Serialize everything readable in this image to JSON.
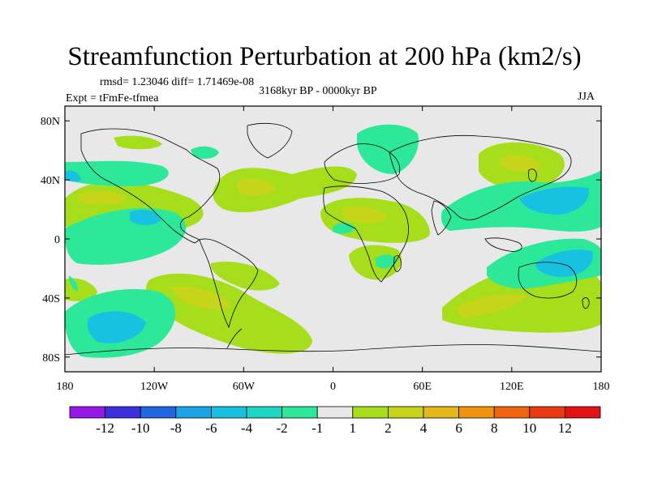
{
  "header": {
    "title": "Streamfunction Perturbation at 200 hPa (km2/s)",
    "stats": "rmsd= 1.23046 diff= 1.71469e-08",
    "period": "3168kyr BP - 0000kyr BP",
    "experiment": "Expt = tFmFe-tfmea",
    "season": "JJA"
  },
  "map": {
    "projection": "cylindrical equidistant",
    "lon_range": [
      -180,
      180
    ],
    "lat_range": [
      -90,
      90
    ],
    "lat_ticks": [
      {
        "value": 80,
        "label": "80N"
      },
      {
        "value": 40,
        "label": "40N"
      },
      {
        "value": 0,
        "label": "0"
      },
      {
        "value": -40,
        "label": "40S"
      },
      {
        "value": -80,
        "label": "80S"
      }
    ],
    "lon_ticks": [
      {
        "value": -180,
        "label": "180"
      },
      {
        "value": -120,
        "label": "120W"
      },
      {
        "value": -60,
        "label": "60W"
      },
      {
        "value": 0,
        "label": "0"
      },
      {
        "value": 60,
        "label": "60E"
      },
      {
        "value": 120,
        "label": "120E"
      },
      {
        "value": 180,
        "label": "180"
      }
    ],
    "background_color": "#e8e8e8"
  },
  "colorbar": {
    "labels": [
      "-12",
      "-10",
      "-8",
      "-6",
      "-4",
      "-2",
      "-1",
      "1",
      "2",
      "4",
      "6",
      "8",
      "10",
      "12"
    ],
    "colors": [
      "#9418e6",
      "#3a2fdc",
      "#1f66e0",
      "#1aa4e6",
      "#19c1e0",
      "#1dd6c4",
      "#2ee89a",
      "#e8e8e8",
      "#a6de1c",
      "#c7d51a",
      "#e3b81a",
      "#f0940f",
      "#ee6410",
      "#e83a12",
      "#e01414"
    ]
  },
  "chart_data": {
    "type": "heatmap",
    "title": "Streamfunction Perturbation at 200 hPa (km2/s)",
    "variable": "streamfunction perturbation",
    "units": "km2/s",
    "level": "200 hPa",
    "season": "JJA",
    "rmsd": 1.23046,
    "diff": 1.71469e-08,
    "contour_levels": [
      -12,
      -10,
      -8,
      -6,
      -4,
      -2,
      -1,
      1,
      2,
      4,
      6,
      8,
      10,
      12
    ],
    "regions": [
      {
        "name": "north-pacific-band",
        "lon_range": [
          -180,
          -100
        ],
        "lat_range": [
          15,
          50
        ],
        "min_level": 2,
        "peak_level": 4
      },
      {
        "name": "north-pacific-negative",
        "lon_range": [
          -180,
          -120
        ],
        "lat_range": [
          -10,
          40
        ],
        "min_level": -4,
        "peak_level": -6
      },
      {
        "name": "south-pacific-negative",
        "lon_range": [
          -180,
          -110
        ],
        "lat_range": [
          -80,
          -30
        ],
        "min_level": -4,
        "peak_level": -6
      },
      {
        "name": "south-america-band",
        "lon_range": [
          -115,
          -20
        ],
        "lat_range": [
          -65,
          -20
        ],
        "min_level": 2,
        "peak_level": 4
      },
      {
        "name": "north-atlantic-band",
        "lon_range": [
          -70,
          10
        ],
        "lat_range": [
          20,
          50
        ],
        "min_level": 2,
        "peak_level": 4
      },
      {
        "name": "africa-positive",
        "lon_range": [
          -5,
          60
        ],
        "lat_range": [
          -5,
          25
        ],
        "min_level": 2,
        "peak_level": 4
      },
      {
        "name": "east-asia-positive",
        "lon_range": [
          100,
          160
        ],
        "lat_range": [
          30,
          70
        ],
        "min_level": 2,
        "peak_level": 4
      },
      {
        "name": "west-pacific-negative",
        "lon_range": [
          90,
          180
        ],
        "lat_range": [
          -10,
          40
        ],
        "min_level": -2,
        "peak_level": -6
      },
      {
        "name": "indian-ocean-positive",
        "lon_range": [
          60,
          180
        ],
        "lat_range": [
          -60,
          -10
        ],
        "min_level": 2,
        "peak_level": 4
      },
      {
        "name": "australia-negative",
        "lon_range": [
          100,
          180
        ],
        "lat_range": [
          -40,
          -5
        ],
        "min_level": -2,
        "peak_level": -6
      }
    ]
  }
}
